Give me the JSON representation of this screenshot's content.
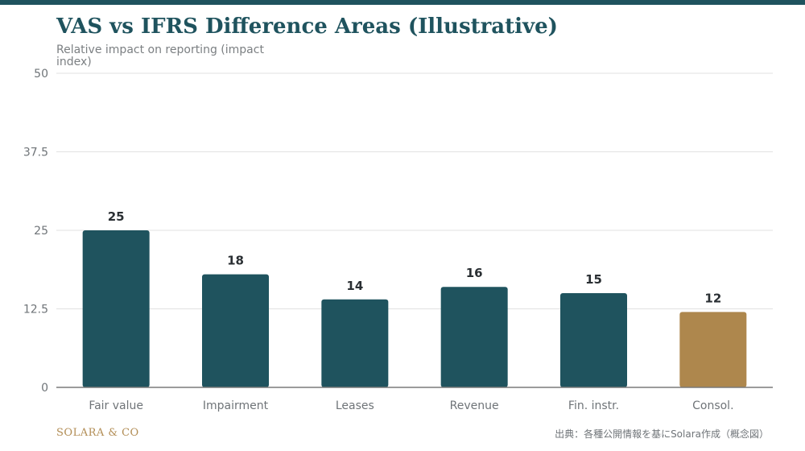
{
  "colors": {
    "primary": "#1f535e",
    "accent": "#ae874d",
    "grid": "#e1e1e1",
    "axis": "#7a7a7a"
  },
  "chart_data": {
    "type": "bar",
    "title": "VAS vs IFRS Difference Areas (Illustrative)",
    "ylabel": "Relative impact on reporting (impact index)",
    "xlabel": "",
    "categories": [
      "Fair value",
      "Impairment",
      "Leases",
      "Revenue",
      "Fin. instr.",
      "Consol."
    ],
    "values": [
      25,
      18,
      14,
      16,
      15,
      12
    ],
    "highlight_index": 5,
    "ylim": [
      0,
      50
    ],
    "yticks": [
      "0",
      "12.5",
      "25",
      "37.5",
      "50"
    ],
    "data_labels": [
      "25",
      "18",
      "14",
      "16",
      "15",
      "12"
    ],
    "grid": true,
    "legend": "none"
  },
  "footer": {
    "brand": "SOLARA & CO",
    "source": "出典：各種公開情報を基にSolara作成（概念図）"
  }
}
